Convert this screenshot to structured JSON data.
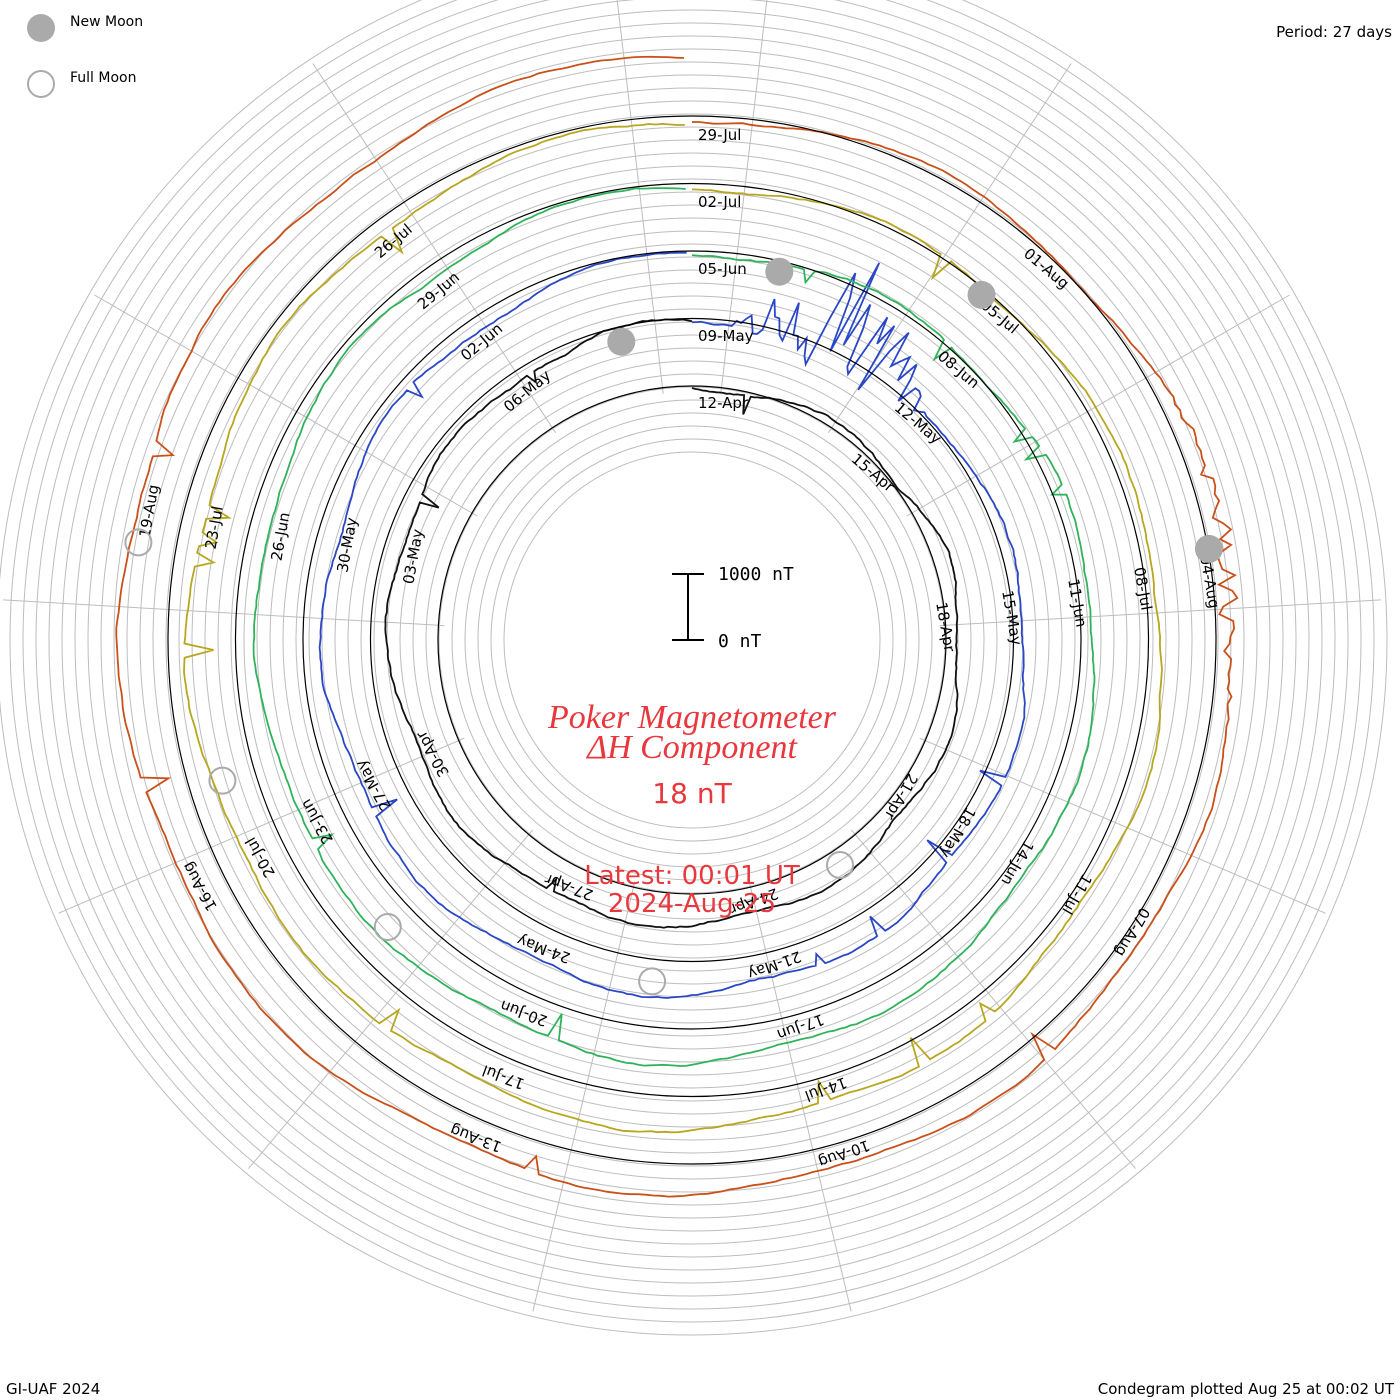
{
  "header": {
    "period": "Period: 27 days",
    "legend_new_moon": "New Moon",
    "legend_full_moon": "Full Moon"
  },
  "footer": {
    "credit": "GI-UAF 2024",
    "plotted": "Condegram plotted Aug 25 at 00:02 UT"
  },
  "center": {
    "title_line1": "Poker Magnetometer",
    "title_line2": "ΔH Component",
    "value": "18 nT",
    "latest_line1": "Latest: 00:01 UT",
    "latest_line2": "2024-Aug-25",
    "scale_top": "1000 nT",
    "scale_bottom": "0 nT"
  },
  "colors": {
    "title": "#e8383d",
    "grid": "#bdbdbd",
    "cycle": [
      "#111111",
      "#1e2a8c",
      "#2a47c7",
      "#2aa3b0",
      "#2fb35a",
      "#7cbd2a",
      "#b8a61f",
      "#c27e12",
      "#c9501a",
      "#b0100f"
    ]
  },
  "chart_data": {
    "type": "line",
    "layout": "spiral condegram",
    "period_days": 27,
    "start_date": "12-Apr",
    "end_date": "25-Aug",
    "scale_nT": [
      0,
      1000
    ],
    "date_labels": [
      "12-Apr",
      "15-Apr",
      "18-Apr",
      "21-Apr",
      "24-Apr",
      "27-Apr",
      "30-Apr",
      "03-May",
      "06-May",
      "09-May",
      "12-May",
      "15-May",
      "18-May",
      "21-May",
      "24-May",
      "27-May",
      "30-May",
      "02-Jun",
      "05-Jun",
      "08-Jun",
      "11-Jun",
      "14-Jun",
      "17-Jun",
      "20-Jun",
      "23-Jun",
      "26-Jun",
      "29-Jun",
      "02-Jul",
      "05-Jul",
      "08-Jul",
      "11-Jul",
      "14-Jul",
      "17-Jul",
      "20-Jul",
      "23-Jul",
      "26-Jul",
      "29-Jul",
      "01-Aug",
      "04-Aug",
      "07-Aug",
      "10-Aug",
      "13-Aug",
      "16-Aug",
      "19-Aug"
    ],
    "new_moon_dates": [
      "08-May",
      "06-Jun",
      "05-Jul",
      "04-Aug"
    ],
    "full_moon_dates": [
      "23-Apr",
      "23-May",
      "22-Jun",
      "21-Jul",
      "19-Aug"
    ],
    "storm_events": [
      {
        "date": "11-May",
        "peak_nT": 1400
      },
      {
        "date": "04-Aug",
        "peak_nT": 300
      }
    ]
  }
}
